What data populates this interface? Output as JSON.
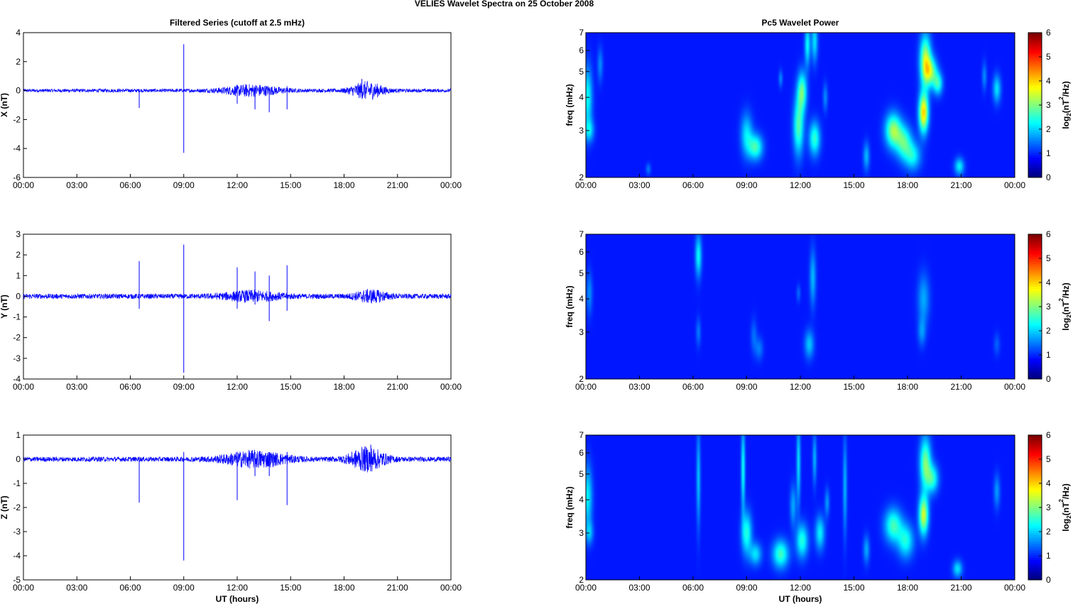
{
  "figure": {
    "title": "VELIES Wavelet Spectra on 25 October   2008",
    "left_title": "Filtered Series (cutoff at 2.5 mHz)",
    "right_title": "Pc5 Wavelet Power",
    "xlabel": "UT (hours)",
    "freq_label": "freq (mHz)",
    "colorbar_label_prefix": "log",
    "colorbar_label_sub": "2",
    "colorbar_label_mid": "(nT",
    "colorbar_label_sup": "2",
    "colorbar_label_suffix": "/Hz)"
  },
  "chart_data": [
    {
      "type": "line",
      "component": "X",
      "ylabel": "X (nT)",
      "ylim": [
        -6,
        4
      ],
      "yticks": [
        -6,
        -4,
        -2,
        0,
        2,
        4
      ],
      "xlim": [
        "00:00",
        "24:00"
      ],
      "xticks": [
        "00:00",
        "03:00",
        "06:00",
        "09:00",
        "12:00",
        "15:00",
        "18:00",
        "21:00",
        "00:00"
      ],
      "color": "#0000ff",
      "noise_amplitude": 0.12,
      "bursts": [
        {
          "center_h": 12.8,
          "width_h": 1.6,
          "amp": 0.35
        },
        {
          "center_h": 19.3,
          "width_h": 0.9,
          "amp": 0.55
        }
      ],
      "spikes": [
        {
          "t_h": 6.5,
          "min": -1.2,
          "max": 0.1
        },
        {
          "t_h": 9.0,
          "min": -4.3,
          "max": 3.2
        },
        {
          "t_h": 12.0,
          "min": -0.9,
          "max": 0.2
        },
        {
          "t_h": 13.0,
          "min": -1.3,
          "max": 0.2
        },
        {
          "t_h": 13.8,
          "min": -1.5,
          "max": 0.2
        },
        {
          "t_h": 14.8,
          "min": -1.3,
          "max": 0.3
        },
        {
          "t_h": 19.0,
          "min": -0.4,
          "max": 0.8
        }
      ]
    },
    {
      "type": "line",
      "component": "Y",
      "ylabel": "Y (nT)",
      "ylim": [
        -4,
        3
      ],
      "yticks": [
        -4,
        -3,
        -2,
        -1,
        0,
        1,
        2,
        3
      ],
      "xlim": [
        "00:00",
        "24:00"
      ],
      "xticks": [
        "00:00",
        "03:00",
        "06:00",
        "09:00",
        "12:00",
        "15:00",
        "18:00",
        "21:00",
        "00:00"
      ],
      "color": "#0000ff",
      "noise_amplitude": 0.12,
      "bursts": [
        {
          "center_h": 12.8,
          "width_h": 1.6,
          "amp": 0.2
        },
        {
          "center_h": 19.5,
          "width_h": 0.9,
          "amp": 0.25
        }
      ],
      "spikes": [
        {
          "t_h": 6.5,
          "min": -0.6,
          "max": 1.7
        },
        {
          "t_h": 9.0,
          "min": -3.7,
          "max": 2.5
        },
        {
          "t_h": 12.0,
          "min": -0.6,
          "max": 1.4
        },
        {
          "t_h": 13.0,
          "min": -0.4,
          "max": 1.2
        },
        {
          "t_h": 13.8,
          "min": -1.2,
          "max": 1.0
        },
        {
          "t_h": 14.8,
          "min": -0.7,
          "max": 1.5
        }
      ]
    },
    {
      "type": "line",
      "component": "Z",
      "ylabel": "Z (nT)",
      "ylim": [
        -5,
        1
      ],
      "yticks": [
        -5,
        -4,
        -3,
        -2,
        -1,
        0,
        1
      ],
      "xlim": [
        "00:00",
        "24:00"
      ],
      "xticks": [
        "00:00",
        "03:00",
        "06:00",
        "09:00",
        "12:00",
        "15:00",
        "18:00",
        "21:00",
        "00:00"
      ],
      "color": "#0000ff",
      "noise_amplitude": 0.1,
      "bursts": [
        {
          "center_h": 13.0,
          "width_h": 1.8,
          "amp": 0.3
        },
        {
          "center_h": 19.3,
          "width_h": 1.0,
          "amp": 0.45
        }
      ],
      "spikes": [
        {
          "t_h": 6.5,
          "min": -1.8,
          "max": 0.1
        },
        {
          "t_h": 9.0,
          "min": -4.2,
          "max": 0.3
        },
        {
          "t_h": 12.0,
          "min": -1.7,
          "max": 0.3
        },
        {
          "t_h": 13.0,
          "min": -0.7,
          "max": 0.3
        },
        {
          "t_h": 13.8,
          "min": -0.7,
          "max": 0.3
        },
        {
          "t_h": 14.8,
          "min": -1.9,
          "max": 0.3
        },
        {
          "t_h": 19.5,
          "min": -0.5,
          "max": 0.6
        }
      ]
    },
    {
      "type": "heatmap",
      "component": "X",
      "ylabel": "freq (mHz)",
      "yscale": "log",
      "ylim": [
        2,
        7
      ],
      "yticks": [
        2,
        3,
        4,
        5,
        6,
        7
      ],
      "xlim": [
        "00:00",
        "24:00"
      ],
      "xticks": [
        "00:00",
        "03:00",
        "06:00",
        "09:00",
        "12:00",
        "15:00",
        "18:00",
        "21:00",
        "00:00"
      ],
      "colorbar": {
        "ticks": [
          0,
          1,
          2,
          3,
          4,
          5,
          6
        ],
        "range": [
          0,
          6
        ]
      },
      "blobs": [
        {
          "t_h": 0.1,
          "f": 4.0,
          "wt": 0.12,
          "wf": 0.22,
          "level": 1.6
        },
        {
          "t_h": 0.2,
          "f": 3.0,
          "wt": 0.12,
          "wf": 0.08,
          "level": 1.2
        },
        {
          "t_h": 0.8,
          "f": 5.3,
          "wt": 0.07,
          "wf": 0.12,
          "level": 0.8
        },
        {
          "t_h": 3.5,
          "f": 2.15,
          "wt": 0.06,
          "wf": 0.04,
          "level": 0.7
        },
        {
          "t_h": 9.0,
          "f": 2.9,
          "wt": 0.15,
          "wf": 0.15,
          "level": 1.4
        },
        {
          "t_h": 9.5,
          "f": 2.6,
          "wt": 0.18,
          "wf": 0.09,
          "level": 2.0
        },
        {
          "t_h": 10.9,
          "f": 4.7,
          "wt": 0.05,
          "wf": 0.06,
          "level": 0.8
        },
        {
          "t_h": 11.9,
          "f": 3.1,
          "wt": 0.13,
          "wf": 0.2,
          "level": 2.1
        },
        {
          "t_h": 12.1,
          "f": 4.2,
          "wt": 0.12,
          "wf": 0.14,
          "level": 2.2
        },
        {
          "t_h": 12.4,
          "f": 6.3,
          "wt": 0.07,
          "wf": 0.15,
          "level": 1.6
        },
        {
          "t_h": 12.8,
          "f": 6.5,
          "wt": 0.08,
          "wf": 0.15,
          "level": 1.4
        },
        {
          "t_h": 12.8,
          "f": 2.8,
          "wt": 0.14,
          "wf": 0.12,
          "level": 1.9
        },
        {
          "t_h": 13.4,
          "f": 4.0,
          "wt": 0.06,
          "wf": 0.1,
          "level": 0.8
        },
        {
          "t_h": 15.7,
          "f": 2.4,
          "wt": 0.08,
          "wf": 0.1,
          "level": 1.1
        },
        {
          "t_h": 17.2,
          "f": 3.0,
          "wt": 0.2,
          "wf": 0.12,
          "level": 2.6
        },
        {
          "t_h": 17.8,
          "f": 2.7,
          "wt": 0.2,
          "wf": 0.12,
          "level": 2.0
        },
        {
          "t_h": 18.3,
          "f": 2.4,
          "wt": 0.2,
          "wf": 0.1,
          "level": 1.5
        },
        {
          "t_h": 18.9,
          "f": 3.5,
          "wt": 0.12,
          "wf": 0.14,
          "level": 3.6
        },
        {
          "t_h": 19.0,
          "f": 5.5,
          "wt": 0.14,
          "wf": 0.18,
          "level": 2.8
        },
        {
          "t_h": 19.3,
          "f": 5.0,
          "wt": 0.16,
          "wf": 0.1,
          "level": 2.2
        },
        {
          "t_h": 19.7,
          "f": 4.5,
          "wt": 0.12,
          "wf": 0.08,
          "level": 1.8
        },
        {
          "t_h": 20.9,
          "f": 2.2,
          "wt": 0.12,
          "wf": 0.06,
          "level": 1.5
        },
        {
          "t_h": 22.3,
          "f": 4.8,
          "wt": 0.06,
          "wf": 0.1,
          "level": 0.8
        },
        {
          "t_h": 23.0,
          "f": 4.3,
          "wt": 0.1,
          "wf": 0.1,
          "level": 1.4
        }
      ]
    },
    {
      "type": "heatmap",
      "component": "Y",
      "ylabel": "freq (mHz)",
      "yscale": "log",
      "ylim": [
        2,
        7
      ],
      "yticks": [
        2,
        3,
        4,
        5,
        6,
        7
      ],
      "xlim": [
        "00:00",
        "24:00"
      ],
      "xticks": [
        "00:00",
        "03:00",
        "06:00",
        "09:00",
        "12:00",
        "15:00",
        "18:00",
        "21:00",
        "00:00"
      ],
      "colorbar": {
        "ticks": [
          0,
          1,
          2,
          3,
          4,
          5,
          6
        ],
        "range": [
          0,
          6
        ]
      },
      "blobs": [
        {
          "t_h": 0.2,
          "f": 4.2,
          "wt": 0.08,
          "wf": 0.15,
          "level": 0.8
        },
        {
          "t_h": 6.3,
          "f": 5.8,
          "wt": 0.08,
          "wf": 0.15,
          "level": 1.6
        },
        {
          "t_h": 6.3,
          "f": 3.0,
          "wt": 0.06,
          "wf": 0.1,
          "level": 0.7
        },
        {
          "t_h": 9.4,
          "f": 2.9,
          "wt": 0.08,
          "wf": 0.12,
          "level": 0.6
        },
        {
          "t_h": 9.7,
          "f": 2.6,
          "wt": 0.1,
          "wf": 0.08,
          "level": 0.7
        },
        {
          "t_h": 11.9,
          "f": 4.2,
          "wt": 0.05,
          "wf": 0.06,
          "level": 0.6
        },
        {
          "t_h": 12.5,
          "f": 2.7,
          "wt": 0.12,
          "wf": 0.1,
          "level": 1.2
        },
        {
          "t_h": 12.7,
          "f": 4.8,
          "wt": 0.08,
          "wf": 0.2,
          "level": 1.1
        },
        {
          "t_h": 18.9,
          "f": 4.0,
          "wt": 0.15,
          "wf": 0.18,
          "level": 1.0
        },
        {
          "t_h": 18.8,
          "f": 3.0,
          "wt": 0.1,
          "wf": 0.1,
          "level": 0.8
        },
        {
          "t_h": 23.0,
          "f": 2.7,
          "wt": 0.08,
          "wf": 0.08,
          "level": 0.5
        }
      ]
    },
    {
      "type": "heatmap",
      "component": "Z",
      "ylabel": "freq (mHz)",
      "yscale": "log",
      "ylim": [
        2,
        7
      ],
      "yticks": [
        2,
        3,
        4,
        5,
        6,
        7
      ],
      "xlim": [
        "00:00",
        "24:00"
      ],
      "xticks": [
        "00:00",
        "03:00",
        "06:00",
        "09:00",
        "12:00",
        "15:00",
        "18:00",
        "21:00",
        "00:00"
      ],
      "colorbar": {
        "ticks": [
          0,
          1,
          2,
          3,
          4,
          5,
          6
        ],
        "range": [
          0,
          6
        ]
      },
      "blobs": [
        {
          "t_h": 0.1,
          "f": 4.1,
          "wt": 0.12,
          "wf": 0.22,
          "level": 1.5
        },
        {
          "t_h": 0.2,
          "f": 3.0,
          "wt": 0.1,
          "wf": 0.08,
          "level": 1.0
        },
        {
          "t_h": 6.3,
          "f": 4.8,
          "wt": 0.05,
          "wf": 0.35,
          "level": 1.2
        },
        {
          "t_h": 8.8,
          "f": 5.2,
          "wt": 0.05,
          "wf": 0.3,
          "level": 1.7
        },
        {
          "t_h": 9.0,
          "f": 3.0,
          "wt": 0.13,
          "wf": 0.15,
          "level": 1.8
        },
        {
          "t_h": 9.5,
          "f": 2.5,
          "wt": 0.15,
          "wf": 0.08,
          "level": 1.4
        },
        {
          "t_h": 10.9,
          "f": 2.5,
          "wt": 0.2,
          "wf": 0.1,
          "level": 2.0
        },
        {
          "t_h": 11.6,
          "f": 3.8,
          "wt": 0.08,
          "wf": 0.15,
          "level": 1.0
        },
        {
          "t_h": 11.9,
          "f": 5.5,
          "wt": 0.05,
          "wf": 0.3,
          "level": 1.4
        },
        {
          "t_h": 12.1,
          "f": 2.8,
          "wt": 0.15,
          "wf": 0.12,
          "level": 1.8
        },
        {
          "t_h": 12.8,
          "f": 5.7,
          "wt": 0.05,
          "wf": 0.18,
          "level": 1.1
        },
        {
          "t_h": 13.1,
          "f": 3.0,
          "wt": 0.12,
          "wf": 0.12,
          "level": 1.5
        },
        {
          "t_h": 13.5,
          "f": 3.9,
          "wt": 0.06,
          "wf": 0.1,
          "level": 0.9
        },
        {
          "t_h": 14.5,
          "f": 4.5,
          "wt": 0.05,
          "wf": 0.35,
          "level": 1.1
        },
        {
          "t_h": 15.7,
          "f": 2.6,
          "wt": 0.08,
          "wf": 0.1,
          "level": 1.0
        },
        {
          "t_h": 17.2,
          "f": 3.2,
          "wt": 0.22,
          "wf": 0.12,
          "level": 2.0
        },
        {
          "t_h": 17.9,
          "f": 2.8,
          "wt": 0.2,
          "wf": 0.12,
          "level": 1.7
        },
        {
          "t_h": 18.9,
          "f": 3.5,
          "wt": 0.12,
          "wf": 0.14,
          "level": 3.0
        },
        {
          "t_h": 19.0,
          "f": 5.5,
          "wt": 0.14,
          "wf": 0.18,
          "level": 2.4
        },
        {
          "t_h": 19.4,
          "f": 4.8,
          "wt": 0.15,
          "wf": 0.1,
          "level": 1.8
        },
        {
          "t_h": 20.8,
          "f": 2.2,
          "wt": 0.12,
          "wf": 0.06,
          "level": 1.4
        },
        {
          "t_h": 23.0,
          "f": 4.3,
          "wt": 0.08,
          "wf": 0.12,
          "level": 0.9
        }
      ]
    }
  ]
}
